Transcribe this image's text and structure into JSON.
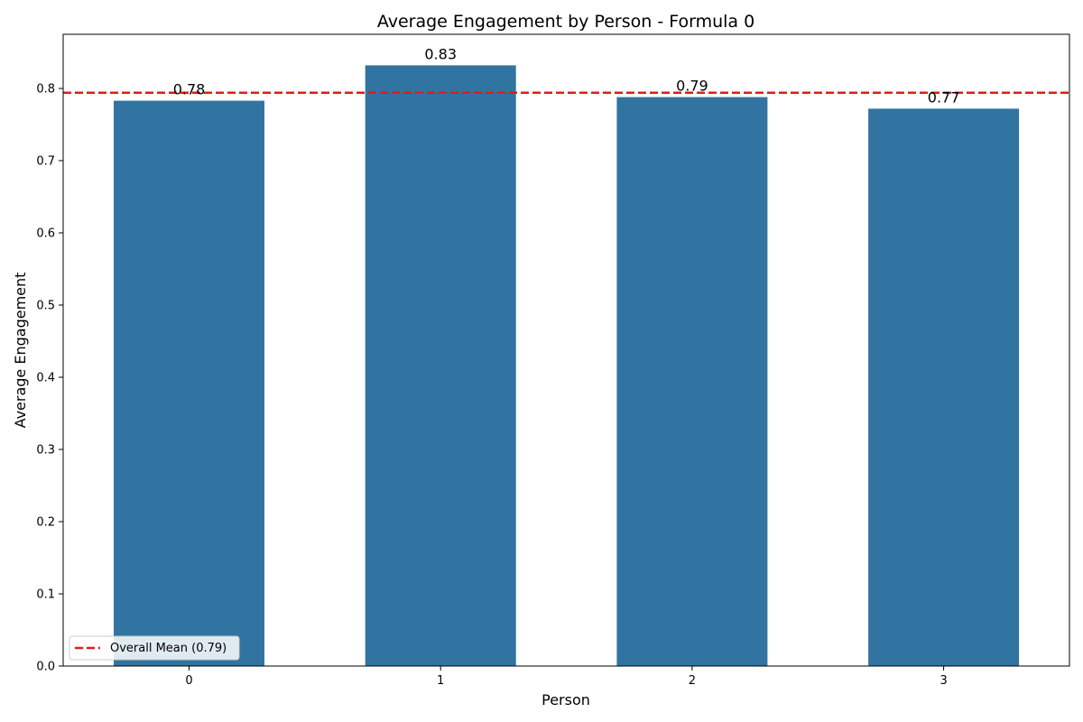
{
  "chart_data": {
    "type": "bar",
    "title": "Average Engagement by Person - Formula 0",
    "xlabel": "Person",
    "ylabel": "Average Engagement",
    "categories": [
      "0",
      "1",
      "2",
      "3"
    ],
    "values": [
      0.783,
      0.832,
      0.788,
      0.772
    ],
    "value_labels": [
      "0.78",
      "0.83",
      "0.79",
      "0.77"
    ],
    "ylim": [
      0,
      0.875
    ],
    "yticks": [
      0.0,
      0.1,
      0.2,
      0.3,
      0.4,
      0.5,
      0.6,
      0.7,
      0.8
    ],
    "ytick_labels": [
      "0.0",
      "0.1",
      "0.2",
      "0.3",
      "0.4",
      "0.5",
      "0.6",
      "0.7",
      "0.8"
    ],
    "bar_color": "#3274a1",
    "grid": false,
    "reference_line": {
      "value": 0.794,
      "label": "Overall Mean (0.79)",
      "color": "#e41a1c",
      "style": "dashed"
    },
    "legend": {
      "position": "lower-left"
    }
  }
}
